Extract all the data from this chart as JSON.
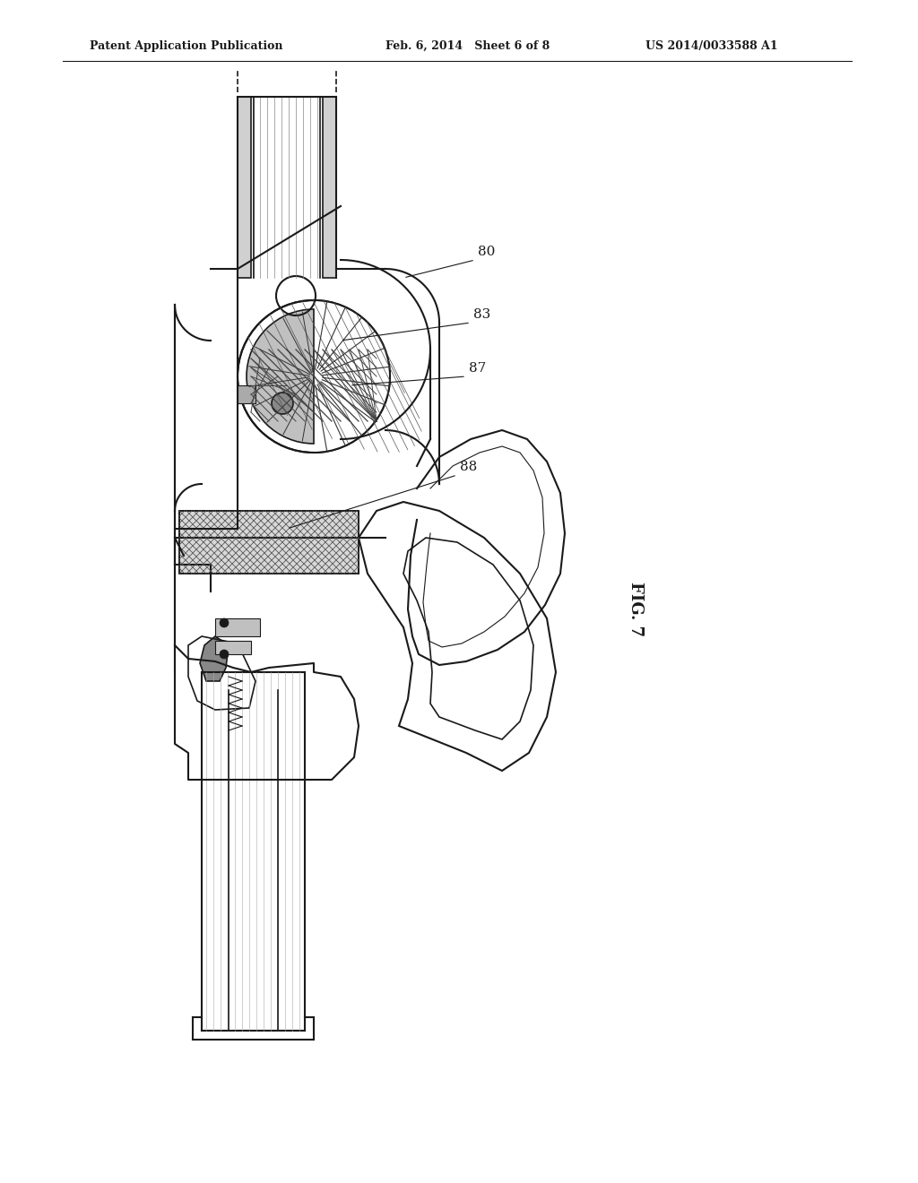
{
  "background_color": "#ffffff",
  "header_left": "Patent Application Publication",
  "header_center": "Feb. 6, 2014   Sheet 6 of 8",
  "header_right": "US 2014/0033588 A1",
  "figure_label": "FIG. 7",
  "ref_numbers": [
    "80",
    "83",
    "87",
    "88"
  ],
  "title_fontsize": 10,
  "label_fontsize": 11
}
